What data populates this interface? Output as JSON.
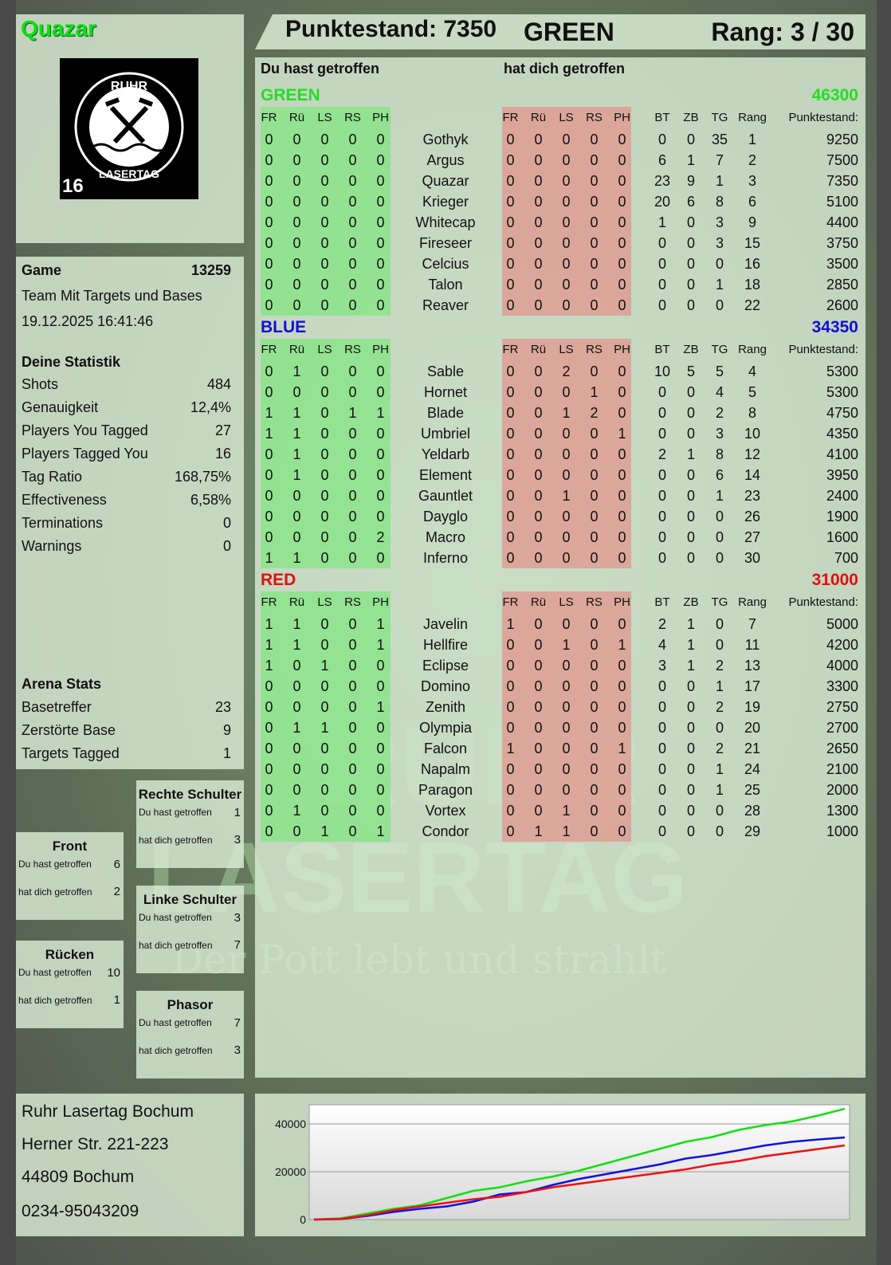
{
  "player": {
    "name": "Quazar",
    "logo_text": "RUHR LASERTAG",
    "logo_badge": "16"
  },
  "header": {
    "score": "Punktestand: 7350",
    "team": "GREEN",
    "rank": "Rang: 3 / 30"
  },
  "main": {
    "hit_label": "Du hast getroffen",
    "got_hit_label": "hat dich getroffen",
    "columns": {
      "hit": [
        "FR",
        "Rü",
        "LS",
        "RS",
        "PH"
      ],
      "got": [
        "FR",
        "Rü",
        "LS",
        "RS",
        "PH"
      ],
      "stats": [
        "BT",
        "ZB",
        "TG",
        "Rang",
        "Punktestand:"
      ]
    },
    "teams": [
      {
        "name": "GREEN",
        "score": "46300",
        "color": "#1fe01f",
        "rows": [
          [
            "0",
            "0",
            "0",
            "0",
            "0",
            "Gothyk",
            "0",
            "0",
            "0",
            "0",
            "0",
            "0",
            "0",
            "35",
            "1",
            "9250"
          ],
          [
            "0",
            "0",
            "0",
            "0",
            "0",
            "Argus",
            "0",
            "0",
            "0",
            "0",
            "0",
            "6",
            "1",
            "7",
            "2",
            "7500"
          ],
          [
            "0",
            "0",
            "0",
            "0",
            "0",
            "Quazar",
            "0",
            "0",
            "0",
            "0",
            "0",
            "23",
            "9",
            "1",
            "3",
            "7350"
          ],
          [
            "0",
            "0",
            "0",
            "0",
            "0",
            "Krieger",
            "0",
            "0",
            "0",
            "0",
            "0",
            "20",
            "6",
            "8",
            "6",
            "5100"
          ],
          [
            "0",
            "0",
            "0",
            "0",
            "0",
            "Whitecap",
            "0",
            "0",
            "0",
            "0",
            "0",
            "1",
            "0",
            "3",
            "9",
            "4400"
          ],
          [
            "0",
            "0",
            "0",
            "0",
            "0",
            "Fireseer",
            "0",
            "0",
            "0",
            "0",
            "0",
            "0",
            "0",
            "3",
            "15",
            "3750"
          ],
          [
            "0",
            "0",
            "0",
            "0",
            "0",
            "Celcius",
            "0",
            "0",
            "0",
            "0",
            "0",
            "0",
            "0",
            "0",
            "16",
            "3500"
          ],
          [
            "0",
            "0",
            "0",
            "0",
            "0",
            "Talon",
            "0",
            "0",
            "0",
            "0",
            "0",
            "0",
            "0",
            "1",
            "18",
            "2850"
          ],
          [
            "0",
            "0",
            "0",
            "0",
            "0",
            "Reaver",
            "0",
            "0",
            "0",
            "0",
            "0",
            "0",
            "0",
            "0",
            "22",
            "2600"
          ]
        ]
      },
      {
        "name": "BLUE",
        "score": "34350",
        "color": "#1010d8",
        "rows": [
          [
            "0",
            "1",
            "0",
            "0",
            "0",
            "Sable",
            "0",
            "0",
            "2",
            "0",
            "0",
            "10",
            "5",
            "5",
            "4",
            "5300"
          ],
          [
            "0",
            "0",
            "0",
            "0",
            "0",
            "Hornet",
            "0",
            "0",
            "0",
            "1",
            "0",
            "0",
            "0",
            "4",
            "5",
            "5300"
          ],
          [
            "1",
            "1",
            "0",
            "1",
            "1",
            "Blade",
            "0",
            "0",
            "1",
            "2",
            "0",
            "0",
            "0",
            "2",
            "8",
            "4750"
          ],
          [
            "1",
            "1",
            "0",
            "0",
            "0",
            "Umbriel",
            "0",
            "0",
            "0",
            "0",
            "1",
            "0",
            "0",
            "3",
            "10",
            "4350"
          ],
          [
            "0",
            "1",
            "0",
            "0",
            "0",
            "Yeldarb",
            "0",
            "0",
            "0",
            "0",
            "0",
            "2",
            "1",
            "8",
            "12",
            "4100"
          ],
          [
            "0",
            "1",
            "0",
            "0",
            "0",
            "Element",
            "0",
            "0",
            "0",
            "0",
            "0",
            "0",
            "0",
            "6",
            "14",
            "3950"
          ],
          [
            "0",
            "0",
            "0",
            "0",
            "0",
            "Gauntlet",
            "0",
            "0",
            "1",
            "0",
            "0",
            "0",
            "0",
            "1",
            "23",
            "2400"
          ],
          [
            "0",
            "0",
            "0",
            "0",
            "0",
            "Dayglo",
            "0",
            "0",
            "0",
            "0",
            "0",
            "0",
            "0",
            "0",
            "26",
            "1900"
          ],
          [
            "0",
            "0",
            "0",
            "0",
            "2",
            "Macro",
            "0",
            "0",
            "0",
            "0",
            "0",
            "0",
            "0",
            "0",
            "27",
            "1600"
          ],
          [
            "1",
            "1",
            "0",
            "0",
            "0",
            "Inferno",
            "0",
            "0",
            "0",
            "0",
            "0",
            "0",
            "0",
            "0",
            "30",
            "700"
          ]
        ]
      },
      {
        "name": "RED",
        "score": "31000",
        "color": "#e01010",
        "rows": [
          [
            "1",
            "1",
            "0",
            "0",
            "1",
            "Javelin",
            "1",
            "0",
            "0",
            "0",
            "0",
            "2",
            "1",
            "0",
            "7",
            "5000"
          ],
          [
            "1",
            "1",
            "0",
            "0",
            "1",
            "Hellfire",
            "0",
            "0",
            "1",
            "0",
            "1",
            "4",
            "1",
            "0",
            "11",
            "4200"
          ],
          [
            "1",
            "0",
            "1",
            "0",
            "0",
            "Eclipse",
            "0",
            "0",
            "0",
            "0",
            "0",
            "3",
            "1",
            "2",
            "13",
            "4000"
          ],
          [
            "0",
            "0",
            "0",
            "0",
            "0",
            "Domino",
            "0",
            "0",
            "0",
            "0",
            "0",
            "0",
            "0",
            "1",
            "17",
            "3300"
          ],
          [
            "0",
            "0",
            "0",
            "0",
            "1",
            "Zenith",
            "0",
            "0",
            "0",
            "0",
            "0",
            "0",
            "0",
            "2",
            "19",
            "2750"
          ],
          [
            "0",
            "1",
            "1",
            "0",
            "0",
            "Olympia",
            "0",
            "0",
            "0",
            "0",
            "0",
            "0",
            "0",
            "0",
            "20",
            "2700"
          ],
          [
            "0",
            "0",
            "0",
            "0",
            "0",
            "Falcon",
            "1",
            "0",
            "0",
            "0",
            "1",
            "0",
            "0",
            "2",
            "21",
            "2650"
          ],
          [
            "0",
            "0",
            "0",
            "0",
            "0",
            "Napalm",
            "0",
            "0",
            "0",
            "0",
            "0",
            "0",
            "0",
            "1",
            "24",
            "2100"
          ],
          [
            "0",
            "0",
            "0",
            "0",
            "0",
            "Paragon",
            "0",
            "0",
            "0",
            "0",
            "0",
            "0",
            "0",
            "1",
            "25",
            "2000"
          ],
          [
            "0",
            "1",
            "0",
            "0",
            "0",
            "Vortex",
            "0",
            "0",
            "1",
            "0",
            "0",
            "0",
            "0",
            "0",
            "28",
            "1300"
          ],
          [
            "0",
            "0",
            "1",
            "0",
            "1",
            "Condor",
            "0",
            "1",
            "1",
            "0",
            "0",
            "0",
            "0",
            "0",
            "29",
            "1000"
          ]
        ]
      }
    ]
  },
  "game": {
    "label": "Game",
    "id": "13259",
    "mode": "Team Mit Targets und Bases",
    "datetime": "19.12.2025 16:41:46"
  },
  "stats": {
    "title": "Deine Statistik",
    "items": [
      {
        "label": "Shots",
        "value": "484"
      },
      {
        "label": "Genauigkeit",
        "value": "12,4%"
      },
      {
        "label": "Players You Tagged",
        "value": "27"
      },
      {
        "label": "Players Tagged You",
        "value": "16"
      },
      {
        "label": "Tag Ratio",
        "value": "168,75%"
      },
      {
        "label": "Effectiveness",
        "value": "6,58%"
      },
      {
        "label": "Terminations",
        "value": "0"
      },
      {
        "label": "Warnings",
        "value": "0"
      }
    ]
  },
  "arena": {
    "title": "Arena Stats",
    "items": [
      {
        "label": "Basetreffer",
        "value": "23"
      },
      {
        "label": "Zerstörte Base",
        "value": "9"
      },
      {
        "label": "Targets Tagged",
        "value": "1"
      }
    ]
  },
  "zones": {
    "hit_label": "Du hast getroffen",
    "got_label": "hat dich getroffen",
    "items": [
      {
        "name": "Rechte Schulter",
        "hit": "1",
        "got": "3"
      },
      {
        "name": "Front",
        "hit": "6",
        "got": "2"
      },
      {
        "name": "Linke Schulter",
        "hit": "3",
        "got": "7"
      },
      {
        "name": "Rücken",
        "hit": "10",
        "got": "1"
      },
      {
        "name": "Phasor",
        "hit": "7",
        "got": "3"
      }
    ]
  },
  "address": {
    "line1": "Ruhr Lasertag Bochum",
    "line2": "Herner Str. 221-223",
    "line3": "44809 Bochum",
    "phone": "0234-95043209"
  },
  "watermark": {
    "line1": "RUHR",
    "line2": "LASERTAG",
    "slogan": "Der Pott lebt und strahlt"
  },
  "chart_data": {
    "type": "line",
    "ylim": [
      0,
      48000
    ],
    "yticks": [
      "0",
      "20000",
      "40000"
    ],
    "grid": true,
    "legend": "none",
    "x": [
      0,
      1,
      2,
      3,
      4,
      5,
      6,
      7,
      8,
      9,
      10,
      11,
      12,
      13,
      14,
      15,
      16,
      17,
      18,
      19,
      20
    ],
    "series": [
      {
        "color": "#10e010",
        "values": [
          0,
          500,
          2500,
          4500,
          6000,
          9000,
          12000,
          13500,
          16000,
          18000,
          20500,
          23500,
          26500,
          29500,
          32500,
          34500,
          37500,
          39500,
          41000,
          43500,
          46300
        ]
      },
      {
        "color": "#1010e0",
        "values": [
          0,
          200,
          1500,
          3200,
          4500,
          5500,
          7500,
          10500,
          11500,
          14500,
          17000,
          19000,
          21000,
          23000,
          25500,
          27000,
          29000,
          31000,
          32500,
          33500,
          34350
        ]
      },
      {
        "color": "#f01010",
        "values": [
          0,
          300,
          1800,
          4000,
          5500,
          7000,
          8500,
          9500,
          11500,
          13500,
          15000,
          16500,
          18000,
          19500,
          21000,
          23000,
          24500,
          26500,
          28000,
          29500,
          31000
        ]
      }
    ]
  }
}
